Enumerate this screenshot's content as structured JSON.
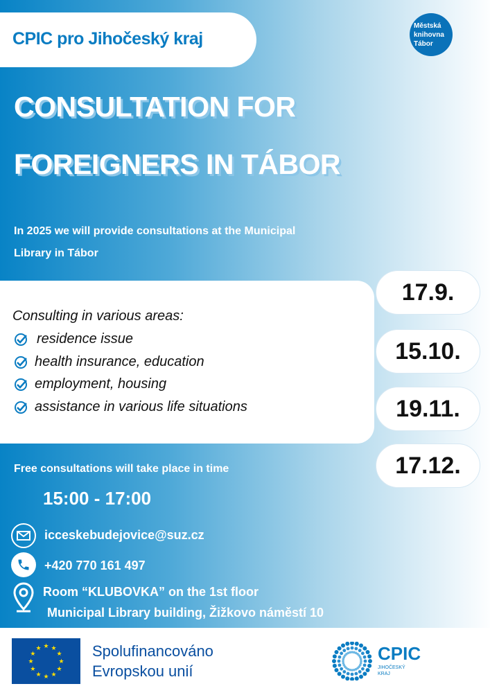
{
  "header": {
    "badge": "CPIC pro Jihočeský kraj",
    "library_logo": "Městská\nknihovna\nTábor"
  },
  "title": {
    "line1": "CONSULTATION FOR",
    "line2": "FOREIGNERS IN TÁBOR"
  },
  "subtitle": {
    "line1": "In 2025 we will provide consultations at the Municipal",
    "line2": "Library in Tábor"
  },
  "areas": {
    "heading": "Consulting in various areas:",
    "items": [
      "residence issue",
      "health insurance, education",
      "employment, housing",
      "assistance in various life situations"
    ]
  },
  "dates": [
    "17.9.",
    "15.10.",
    "19.11.",
    "17.12."
  ],
  "time": {
    "label": "Free consultations will take place in time",
    "value": "15:00 - 17:00"
  },
  "contact": {
    "email": "icceskebudejovice@suz.cz",
    "phone": "+420 770 161 497",
    "location_line1": "Room “KLUBOVKA” on the 1st floor",
    "location_line2": "Municipal Library building, Žižkovo náměstí 10"
  },
  "footer": {
    "eu_line1": "Spolufinancováno",
    "eu_line2": "Evropskou unií",
    "cpic_name": "CPIC",
    "cpic_sub1": "JIHOČESKÝ",
    "cpic_sub2": "KRAJ"
  },
  "colors": {
    "brand_blue": "#0a7cc2",
    "eu_blue": "#0a4fa0",
    "eu_star": "#ffdd00"
  }
}
